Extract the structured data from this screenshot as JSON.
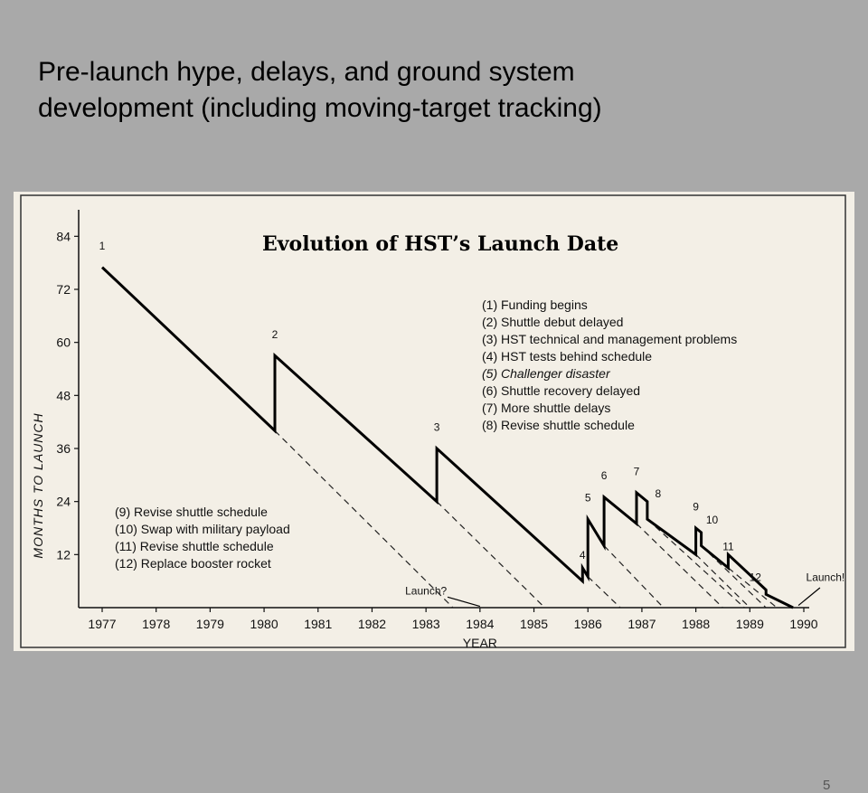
{
  "slide": {
    "title_line1": "Pre-launch hype, delays, and ground system",
    "title_line2": "development (including moving-target tracking)",
    "page_number": "5"
  },
  "chart_data": {
    "type": "line",
    "title": "Evolution of HST’s Launch Date",
    "ylabel": "MONTHS TO LAUNCH",
    "xlabel": "YEAR",
    "ylim": [
      0,
      90
    ],
    "xlim": [
      1977,
      1990
    ],
    "yticks": [
      12,
      24,
      36,
      48,
      60,
      72,
      84
    ],
    "xticks": [
      1977,
      1978,
      1979,
      1980,
      1981,
      1982,
      1983,
      1984,
      1985,
      1986,
      1987,
      1988,
      1989,
      1990
    ],
    "series": [
      {
        "points": [
          [
            1977.0,
            77
          ],
          [
            1980.2,
            40
          ],
          [
            1980.2,
            57
          ],
          [
            1983.2,
            24
          ],
          [
            1983.2,
            36
          ],
          [
            1985.9,
            6
          ],
          [
            1985.9,
            9
          ],
          [
            1986.0,
            7
          ],
          [
            1986.0,
            20
          ],
          [
            1986.3,
            14
          ],
          [
            1986.3,
            25
          ],
          [
            1986.9,
            19
          ],
          [
            1986.9,
            26
          ],
          [
            1987.1,
            24
          ],
          [
            1987.1,
            20
          ],
          [
            1988.0,
            12
          ],
          [
            1988.0,
            18
          ],
          [
            1988.1,
            17
          ],
          [
            1988.1,
            14
          ],
          [
            1988.6,
            9
          ],
          [
            1988.6,
            12
          ],
          [
            1989.3,
            4
          ],
          [
            1989.3,
            3
          ],
          [
            1989.8,
            0
          ]
        ]
      }
    ],
    "dashed_launch_lines": [
      {
        "from": [
          1980.2,
          40
        ],
        "to": [
          1983.5,
          0
        ]
      },
      {
        "from": [
          1983.2,
          24
        ],
        "to": [
          1985.2,
          0
        ]
      },
      {
        "from": [
          1986.0,
          7
        ],
        "to": [
          1986.6,
          0
        ]
      },
      {
        "from": [
          1986.3,
          14
        ],
        "to": [
          1987.4,
          0
        ]
      },
      {
        "from": [
          1986.9,
          19
        ],
        "to": [
          1988.5,
          0
        ]
      },
      {
        "from": [
          1987.1,
          20
        ],
        "to": [
          1988.9,
          0
        ]
      },
      {
        "from": [
          1988.0,
          12
        ],
        "to": [
          1989.0,
          0
        ]
      },
      {
        "from": [
          1988.1,
          14
        ],
        "to": [
          1989.3,
          0
        ]
      },
      {
        "from": [
          1988.6,
          9
        ],
        "to": [
          1989.5,
          0
        ]
      }
    ],
    "event_labels": [
      {
        "text": "1",
        "x": 1977.0,
        "y": 81
      },
      {
        "text": "2",
        "x": 1980.2,
        "y": 61
      },
      {
        "text": "3",
        "x": 1983.2,
        "y": 40
      },
      {
        "text": "4",
        "x": 1985.9,
        "y": 11
      },
      {
        "text": "5",
        "x": 1986.0,
        "y": 24
      },
      {
        "text": "6",
        "x": 1986.3,
        "y": 29
      },
      {
        "text": "7",
        "x": 1986.9,
        "y": 30
      },
      {
        "text": "8",
        "x": 1987.3,
        "y": 25
      },
      {
        "text": "9",
        "x": 1988.0,
        "y": 22
      },
      {
        "text": "10",
        "x": 1988.3,
        "y": 19
      },
      {
        "text": "11",
        "x": 1988.6,
        "y": 13
      },
      {
        "text": "12",
        "x": 1989.1,
        "y": 6
      }
    ],
    "annotations": [
      {
        "text": "Launch?",
        "x": 1983.0,
        "y": 3
      },
      {
        "text": "Launch!",
        "x": 1990.4,
        "y": 6
      }
    ],
    "legend_top": [
      "(1)  Funding begins",
      "(2)  Shuttle debut delayed",
      "(3)  HST technical and management problems",
      "(4)  HST tests behind schedule",
      "(5)  Challenger disaster",
      "(6)  Shuttle recovery delayed",
      "(7)  More shuttle delays",
      "(8)  Revise shuttle schedule"
    ],
    "legend_bottom": [
      "(9)  Revise shuttle schedule",
      "(10)  Swap with military payload",
      "(11)  Revise shuttle schedule",
      "(12)  Replace booster rocket"
    ],
    "grid": false,
    "legend_position": "right and bottom-left"
  }
}
